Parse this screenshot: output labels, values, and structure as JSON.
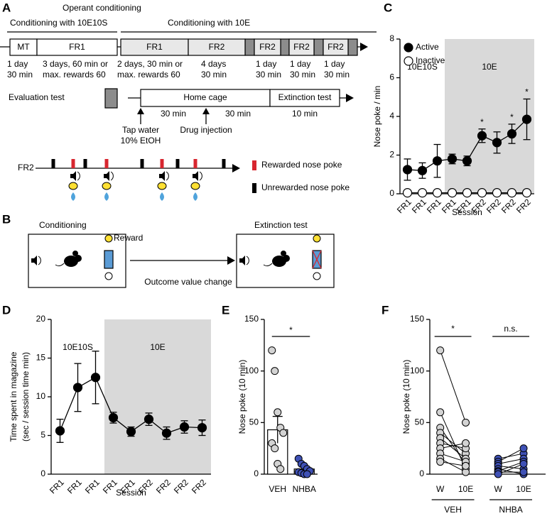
{
  "panel_a": {
    "letter": "A",
    "title": "Operant conditioning",
    "phase1": "Conditioning with 10E10S",
    "phase2": "Conditioning with 10E",
    "stages": [
      "MT",
      "FR1",
      "FR1",
      "FR2",
      "FR2",
      "FR2",
      "FR2"
    ],
    "durations": [
      [
        "1 day",
        "30 min"
      ],
      [
        "3 days, 60 min or",
        "max. rewards 60"
      ],
      [
        "2 days, 30 min or",
        "max. rewards 60"
      ],
      [
        "4 days",
        "30 min"
      ],
      [
        "1 day",
        "30 min"
      ],
      [
        "1 day",
        "30 min"
      ],
      [
        "1 day",
        "30 min"
      ]
    ],
    "evaluation": "Evaluation test",
    "home_cage": "Home cage",
    "extinction": "Extinction test",
    "intervals": [
      "30 min",
      "30 min",
      "10 min"
    ],
    "tap_water": [
      "Tap water",
      "10% EtOH"
    ],
    "drug": "Drug injection",
    "schedule": "FR2",
    "rewarded": "Rewarded nose poke",
    "unrewarded": "Unrewarded nose poke"
  },
  "panel_b": {
    "letter": "B",
    "conditioning": "Conditioning",
    "reward": "Reward",
    "extinction": "Extinction test",
    "change": "Outcome value change"
  },
  "chart_data": [
    {
      "type": "line",
      "letter": "C",
      "categories": [
        "FR1",
        "FR1",
        "FR1",
        "FR1",
        "FR1",
        "FR2",
        "FR2",
        "FR2",
        "FR2"
      ],
      "series": [
        {
          "name": "Active",
          "color": "#000000",
          "values": [
            1.25,
            1.2,
            1.7,
            1.8,
            1.7,
            3.0,
            2.65,
            3.1,
            3.85
          ],
          "errors": [
            0.55,
            0.4,
            0.85,
            0.25,
            0.25,
            0.35,
            0.55,
            0.5,
            1.05
          ]
        },
        {
          "name": "Inactive",
          "color": "#ffffff",
          "values": [
            0.05,
            0.05,
            0.05,
            0.05,
            0.05,
            0.05,
            0.05,
            0.05,
            0.05
          ]
        }
      ],
      "ylim": [
        0,
        8
      ],
      "yticks": [
        0,
        2,
        4,
        6,
        8
      ],
      "ylabel": [
        "Nose poke / min"
      ],
      "xlabel": "Session",
      "regions": [
        "10E10S",
        "10E"
      ],
      "shade_from": 3,
      "shade_color": "#d9d9d9",
      "legend": "upper left",
      "significance": [
        {
          "label": "*",
          "index": 5
        },
        {
          "label": "*",
          "index": 7
        },
        {
          "label": "*",
          "index": 8
        }
      ]
    },
    {
      "type": "line",
      "letter": "D",
      "categories": [
        "FR1",
        "FR1",
        "FR1",
        "FR1",
        "FR1",
        "FR2",
        "FR2",
        "FR2",
        "FR2"
      ],
      "series": [
        {
          "color": "#000000",
          "values": [
            5.6,
            11.2,
            12.5,
            7.3,
            5.5,
            7.1,
            5.3,
            6.1,
            6.0
          ],
          "errors": [
            1.5,
            3.1,
            3.4,
            0.7,
            0.6,
            0.8,
            0.8,
            0.8,
            1.0
          ]
        }
      ],
      "ylim": [
        0,
        20
      ],
      "yticks": [
        0,
        5,
        10,
        15,
        20
      ],
      "ylabel": [
        "Time spent in magazine",
        "(sec / session time min)"
      ],
      "xlabel": "Session",
      "regions": [
        "10E10S",
        "10E"
      ],
      "shade_from": 3,
      "shade_color": "#d9d9d9",
      "significance": []
    },
    {
      "type": "bar_scatter",
      "letter": "E",
      "categories": [
        "VEH",
        "NHBA"
      ],
      "values": [
        43,
        5
      ],
      "errors": [
        13,
        2.5
      ],
      "colors": [
        "#d3d3d3",
        "#3f51b5"
      ],
      "points": [
        [
          120,
          100,
          60,
          45,
          40,
          30,
          25,
          10,
          5
        ],
        [
          15,
          10,
          8,
          5,
          3,
          2,
          1,
          0,
          0
        ]
      ],
      "ylim": [
        0,
        150
      ],
      "yticks": [
        0,
        50,
        100,
        150
      ],
      "ylabel": [
        "Nose poke (10 min)"
      ],
      "significance": [
        {
          "label": "*",
          "from": 0,
          "to": 1
        }
      ]
    },
    {
      "type": "paired",
      "letter": "F",
      "groups": [
        {
          "name": "VEH",
          "categories": [
            "W",
            "10E"
          ],
          "color": "#d3d3d3",
          "before": [
            120,
            60,
            45,
            40,
            35,
            30,
            25,
            20,
            15,
            12
          ],
          "after": [
            50,
            5,
            10,
            20,
            15,
            25,
            30,
            12,
            2,
            8
          ],
          "significance": "*"
        },
        {
          "name": "NHBA",
          "categories": [
            "W",
            "10E"
          ],
          "color": "#3f51b5",
          "before": [
            15,
            12,
            10,
            8,
            5,
            3,
            2,
            0
          ],
          "after": [
            20,
            25,
            15,
            5,
            0,
            12,
            2,
            10
          ],
          "significance": "n.s."
        }
      ],
      "ylim": [
        0,
        150
      ],
      "yticks": [
        0,
        50,
        100,
        150
      ],
      "ylabel": [
        "Nose poke (10 min)"
      ]
    }
  ]
}
